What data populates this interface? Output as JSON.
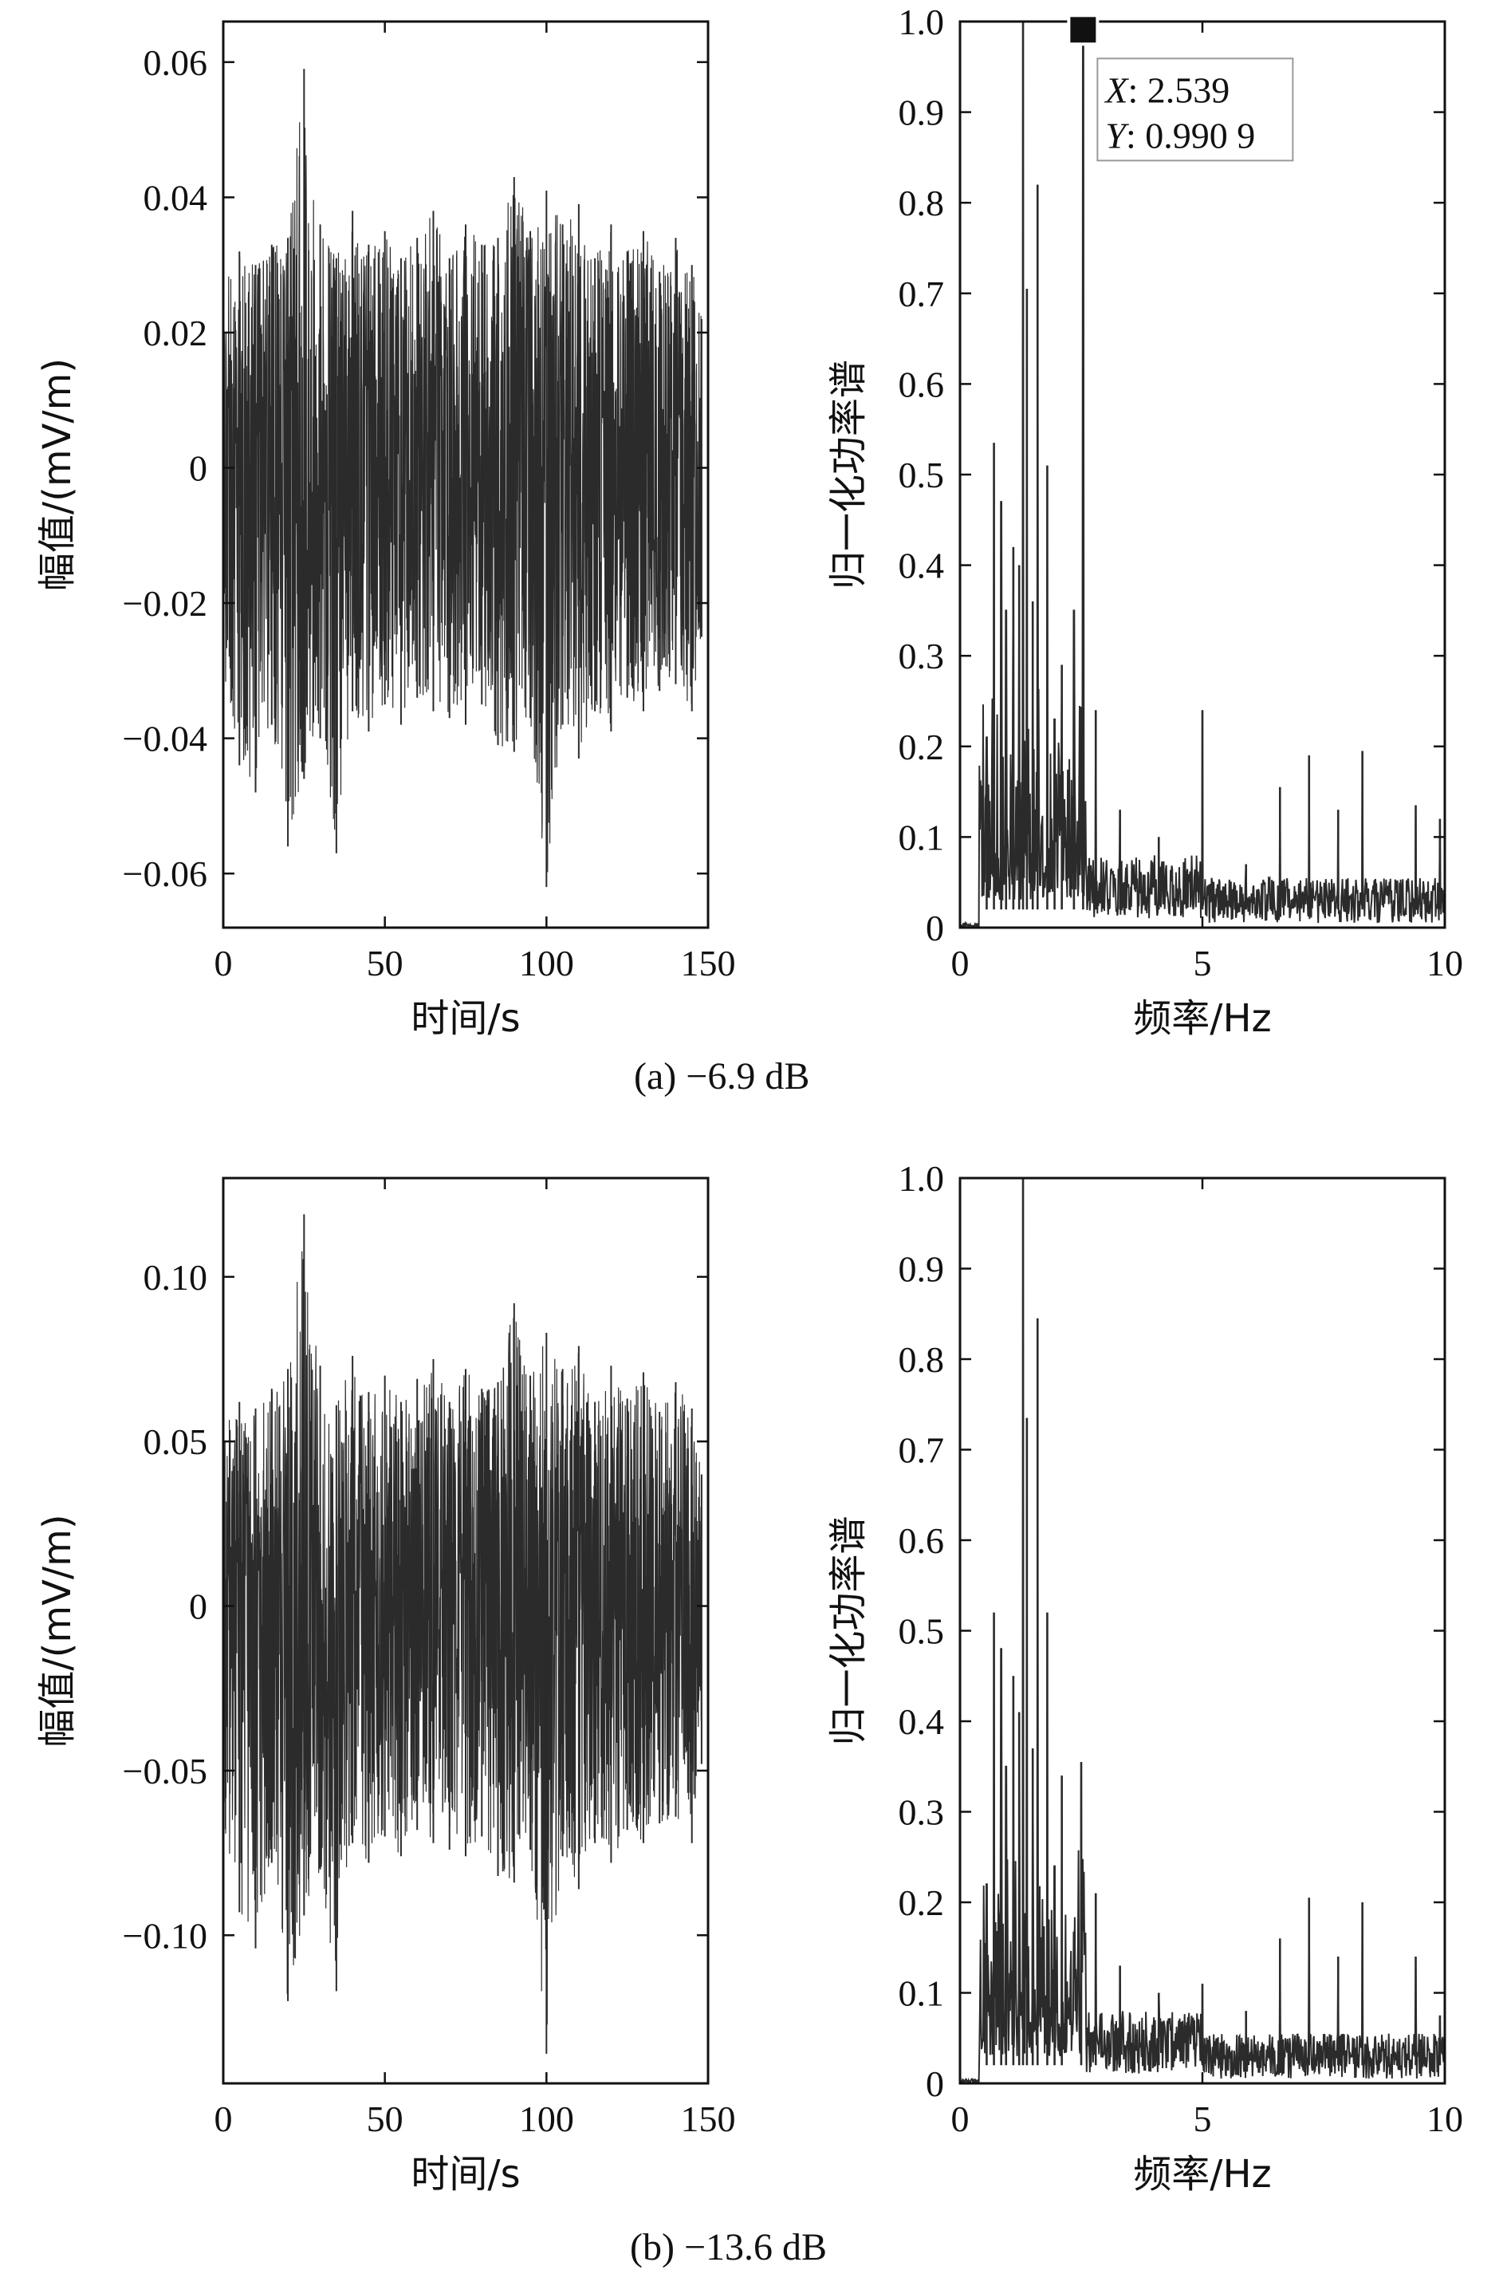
{
  "figure": {
    "captions": [
      {
        "label": "(a)",
        "text": "−6.9 dB"
      },
      {
        "label": "(b)",
        "text": "−13.6 dB"
      }
    ]
  },
  "chart_data": [
    {
      "type": "line",
      "panel": "a-time",
      "xlabel": "时间/s",
      "ylabel": "幅值/(mV/m)",
      "xlim": [
        0,
        150
      ],
      "ylim": [
        -0.068,
        0.066
      ],
      "xticks": [
        {
          "v": 0,
          "t": "0"
        },
        {
          "v": 50,
          "t": "50"
        },
        {
          "v": 100,
          "t": "100"
        },
        {
          "v": 150,
          "t": "150"
        }
      ],
      "yticks": [
        {
          "v": 0.06,
          "t": "0.06"
        },
        {
          "v": 0.04,
          "t": "0.04"
        },
        {
          "v": 0.02,
          "t": "0.02"
        },
        {
          "v": 0,
          "t": "0"
        },
        {
          "v": -0.02,
          "t": "−0.02"
        },
        {
          "v": -0.04,
          "t": "−0.04"
        },
        {
          "v": -0.06,
          "t": "−0.06"
        }
      ],
      "series": [
        {
          "x": [
            0,
            5,
            10,
            15,
            20,
            25,
            30,
            35,
            40,
            45,
            50,
            55,
            60,
            65,
            70,
            75,
            80,
            85,
            90,
            95,
            100,
            105,
            110,
            115,
            120,
            125,
            130,
            135,
            140,
            145,
            148
          ],
          "y_max": [
            0.027,
            0.032,
            0.03,
            0.033,
            0.034,
            0.059,
            0.036,
            0.031,
            0.038,
            0.033,
            0.035,
            0.031,
            0.034,
            0.038,
            0.031,
            0.036,
            0.033,
            0.034,
            0.043,
            0.035,
            0.041,
            0.036,
            0.039,
            0.031,
            0.036,
            0.032,
            0.035,
            0.029,
            0.034,
            0.03,
            0.022
          ],
          "y_min": [
            -0.031,
            -0.044,
            -0.048,
            -0.038,
            -0.056,
            -0.046,
            -0.04,
            -0.057,
            -0.036,
            -0.039,
            -0.035,
            -0.038,
            -0.034,
            -0.036,
            -0.037,
            -0.038,
            -0.035,
            -0.041,
            -0.042,
            -0.037,
            -0.062,
            -0.038,
            -0.043,
            -0.036,
            -0.039,
            -0.034,
            -0.036,
            -0.033,
            -0.032,
            -0.036,
            -0.025
          ]
        }
      ]
    },
    {
      "type": "line",
      "panel": "a-spectrum",
      "xlabel": "频率/Hz",
      "ylabel": "归一化功率谱",
      "xlim": [
        0,
        10
      ],
      "ylim": [
        0,
        1.0
      ],
      "xticks": [
        {
          "v": 0,
          "t": "0"
        },
        {
          "v": 5,
          "t": "5"
        },
        {
          "v": 10,
          "t": "10"
        }
      ],
      "yticks": [
        {
          "v": 1.0,
          "t": "1.0"
        },
        {
          "v": 0.9,
          "t": "0.9"
        },
        {
          "v": 0.8,
          "t": "0.8"
        },
        {
          "v": 0.7,
          "t": "0.7"
        },
        {
          "v": 0.6,
          "t": "0.6"
        },
        {
          "v": 0.5,
          "t": "0.5"
        },
        {
          "v": 0.4,
          "t": "0.4"
        },
        {
          "v": 0.3,
          "t": "0.3"
        },
        {
          "v": 0.2,
          "t": "0.2"
        },
        {
          "v": 0.1,
          "t": "0.1"
        },
        {
          "v": 0,
          "t": "0"
        }
      ],
      "peaks": [
        {
          "x": 0.55,
          "y": 0.21
        },
        {
          "x": 0.7,
          "y": 0.535
        },
        {
          "x": 0.85,
          "y": 0.47
        },
        {
          "x": 0.95,
          "y": 0.35
        },
        {
          "x": 1.1,
          "y": 0.42
        },
        {
          "x": 1.22,
          "y": 0.4
        },
        {
          "x": 1.3,
          "y": 1.0
        },
        {
          "x": 1.38,
          "y": 0.705
        },
        {
          "x": 1.5,
          "y": 0.36
        },
        {
          "x": 1.6,
          "y": 0.82
        },
        {
          "x": 1.8,
          "y": 0.51
        },
        {
          "x": 1.95,
          "y": 0.23
        },
        {
          "x": 2.1,
          "y": 0.29
        },
        {
          "x": 2.35,
          "y": 0.35
        },
        {
          "x": 2.539,
          "y": 0.9909
        },
        {
          "x": 2.8,
          "y": 0.24
        },
        {
          "x": 3.3,
          "y": 0.13
        },
        {
          "x": 4.1,
          "y": 0.1
        },
        {
          "x": 5.0,
          "y": 0.24
        },
        {
          "x": 5.9,
          "y": 0.07
        },
        {
          "x": 6.6,
          "y": 0.155
        },
        {
          "x": 7.2,
          "y": 0.19
        },
        {
          "x": 7.8,
          "y": 0.13
        },
        {
          "x": 8.3,
          "y": 0.195
        },
        {
          "x": 9.4,
          "y": 0.135
        },
        {
          "x": 9.9,
          "y": 0.12
        }
      ],
      "annotation": {
        "x_label": "X",
        "x_value": "2.539",
        "y_label": "Y",
        "y_value": "0.990 9"
      }
    },
    {
      "type": "line",
      "panel": "b-time",
      "xlabel": "时间/s",
      "ylabel": "幅值/(mV/m)",
      "xlim": [
        0,
        150
      ],
      "ylim": [
        -0.145,
        0.13
      ],
      "xticks": [
        {
          "v": 0,
          "t": "0"
        },
        {
          "v": 50,
          "t": "50"
        },
        {
          "v": 100,
          "t": "100"
        },
        {
          "v": 150,
          "t": "150"
        }
      ],
      "yticks": [
        {
          "v": 0.1,
          "t": "0.10"
        },
        {
          "v": 0.05,
          "t": "0.05"
        },
        {
          "v": 0,
          "t": "0"
        },
        {
          "v": -0.05,
          "t": "−0.05"
        },
        {
          "v": -0.1,
          "t": "−0.10"
        }
      ],
      "series": [
        {
          "x": [
            0,
            5,
            10,
            15,
            20,
            25,
            30,
            35,
            40,
            45,
            50,
            55,
            60,
            65,
            70,
            75,
            80,
            85,
            90,
            95,
            100,
            105,
            110,
            115,
            120,
            125,
            130,
            135,
            140,
            145,
            148
          ],
          "y_max": [
            0.057,
            0.062,
            0.06,
            0.066,
            0.072,
            0.119,
            0.073,
            0.061,
            0.076,
            0.065,
            0.07,
            0.062,
            0.069,
            0.075,
            0.062,
            0.072,
            0.066,
            0.068,
            0.092,
            0.07,
            0.083,
            0.072,
            0.079,
            0.062,
            0.073,
            0.063,
            0.071,
            0.059,
            0.068,
            0.06,
            0.04
          ],
          "y_min": [
            -0.065,
            -0.093,
            -0.104,
            -0.078,
            -0.12,
            -0.094,
            -0.08,
            -0.117,
            -0.072,
            -0.078,
            -0.07,
            -0.076,
            -0.068,
            -0.072,
            -0.074,
            -0.076,
            -0.07,
            -0.082,
            -0.084,
            -0.074,
            -0.136,
            -0.076,
            -0.086,
            -0.072,
            -0.078,
            -0.068,
            -0.072,
            -0.066,
            -0.064,
            -0.072,
            -0.048
          ]
        }
      ]
    },
    {
      "type": "line",
      "panel": "b-spectrum",
      "xlabel": "频率/Hz",
      "ylabel": "归一化功率谱",
      "xlim": [
        0,
        10
      ],
      "ylim": [
        0,
        1.0
      ],
      "xticks": [
        {
          "v": 0,
          "t": "0"
        },
        {
          "v": 5,
          "t": "5"
        },
        {
          "v": 10,
          "t": "10"
        }
      ],
      "yticks": [
        {
          "v": 1.0,
          "t": "1.0"
        },
        {
          "v": 0.9,
          "t": "0.9"
        },
        {
          "v": 0.8,
          "t": "0.8"
        },
        {
          "v": 0.7,
          "t": "0.7"
        },
        {
          "v": 0.6,
          "t": "0.6"
        },
        {
          "v": 0.5,
          "t": "0.5"
        },
        {
          "v": 0.4,
          "t": "0.4"
        },
        {
          "v": 0.3,
          "t": "0.3"
        },
        {
          "v": 0.2,
          "t": "0.2"
        },
        {
          "v": 0.1,
          "t": "0.1"
        },
        {
          "v": 0,
          "t": "0"
        }
      ],
      "peaks": [
        {
          "x": 0.55,
          "y": 0.22
        },
        {
          "x": 0.7,
          "y": 0.52
        },
        {
          "x": 0.85,
          "y": 0.48
        },
        {
          "x": 0.95,
          "y": 0.35
        },
        {
          "x": 1.1,
          "y": 0.45
        },
        {
          "x": 1.22,
          "y": 0.41
        },
        {
          "x": 1.3,
          "y": 1.0
        },
        {
          "x": 1.38,
          "y": 0.735
        },
        {
          "x": 1.5,
          "y": 0.37
        },
        {
          "x": 1.6,
          "y": 0.845
        },
        {
          "x": 1.8,
          "y": 0.52
        },
        {
          "x": 1.95,
          "y": 0.24
        },
        {
          "x": 2.1,
          "y": 0.34
        },
        {
          "x": 2.5,
          "y": 0.355
        },
        {
          "x": 2.8,
          "y": 0.21
        },
        {
          "x": 3.3,
          "y": 0.13
        },
        {
          "x": 4.1,
          "y": 0.1
        },
        {
          "x": 5.0,
          "y": 0.11
        },
        {
          "x": 5.9,
          "y": 0.08
        },
        {
          "x": 6.6,
          "y": 0.16
        },
        {
          "x": 7.2,
          "y": 0.205
        },
        {
          "x": 7.8,
          "y": 0.14
        },
        {
          "x": 8.3,
          "y": 0.2
        },
        {
          "x": 9.4,
          "y": 0.14
        },
        {
          "x": 9.9,
          "y": 0.075
        }
      ]
    }
  ]
}
